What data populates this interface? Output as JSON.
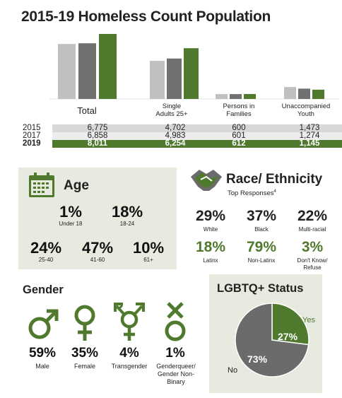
{
  "title": "2015-19 Homeless Count Population",
  "chart_data": {
    "type": "bar",
    "categories": [
      "Total",
      "Single Adults 25+",
      "Persons in Families",
      "Unaccompanied Youth"
    ],
    "series": [
      {
        "name": "2015",
        "values": [
          6775,
          4702,
          600,
          1473
        ],
        "color": "#c0c0c0"
      },
      {
        "name": "2017",
        "values": [
          6858,
          4983,
          601,
          1274
        ],
        "color": "#707070"
      },
      {
        "name": "2019",
        "values": [
          8011,
          6254,
          612,
          1145
        ],
        "color": "#4f7a2e"
      }
    ],
    "xlabel": "",
    "ylabel": "",
    "ylim": [
      0,
      8011
    ]
  },
  "categories": {
    "total": "Total",
    "single_l1": "Single",
    "single_l2": "Adults 25+",
    "families_l1": "Persons in",
    "families_l2": "Families",
    "youth_l1": "Unaccompanied",
    "youth_l2": "Youth"
  },
  "table": {
    "rows": [
      {
        "year": "2015",
        "cells": [
          "6,775",
          "4,702",
          "600",
          "1,473"
        ]
      },
      {
        "year": "2017",
        "cells": [
          "6,858",
          "4,983",
          "601",
          "1,274"
        ]
      },
      {
        "year": "2019",
        "cells": [
          "8,011",
          "6,254",
          "612",
          "1,145"
        ]
      }
    ]
  },
  "age": {
    "title": "Age",
    "groups": [
      {
        "pct": "1%",
        "label": "Under 18"
      },
      {
        "pct": "18%",
        "label": "18-24"
      },
      {
        "pct": "24%",
        "label": "25-40"
      },
      {
        "pct": "47%",
        "label": "41-60"
      },
      {
        "pct": "10%",
        "label": "61+"
      }
    ]
  },
  "race": {
    "title": "Race/ Ethnicity",
    "subtitle": "Top Responses",
    "subtitle_mark": "4",
    "groups": [
      {
        "pct": "29%",
        "label": "White"
      },
      {
        "pct": "37%",
        "label": "Black"
      },
      {
        "pct": "22%",
        "label": "Multi-racial"
      },
      {
        "pct": "18%",
        "label": "Latinx"
      },
      {
        "pct": "79%",
        "label": "Non-Latinx"
      },
      {
        "pct": "3%",
        "label_l1": "Don't Know/",
        "label_l2": "Refuse"
      }
    ]
  },
  "gender": {
    "title": "Gender",
    "groups": [
      {
        "pct": "59%",
        "label": "Male",
        "icon": "male-icon"
      },
      {
        "pct": "35%",
        "label": "Female",
        "icon": "female-icon"
      },
      {
        "pct": "4%",
        "label": "Transgender",
        "icon": "transgender-icon"
      },
      {
        "pct": "1%",
        "label_l1": "Genderqueer/",
        "label_l2": "Gender Non-",
        "label_l3": "Binary",
        "icon": "genderqueer-icon"
      }
    ]
  },
  "lgbtq": {
    "title": "LGBTQ+ Status",
    "chart_data": {
      "type": "pie",
      "categories": [
        "Yes",
        "No"
      ],
      "values": [
        27,
        73
      ],
      "colors": [
        "#4f7a2e",
        "#6b6b6b"
      ]
    },
    "yes_label": "Yes",
    "no_label": "No",
    "yes_pct": "27%",
    "no_pct": "73%"
  },
  "colors": {
    "accent": "#4f7a2e",
    "light_gray": "#c0c0c0",
    "dark_gray": "#707070",
    "panel": "#e6eadf"
  }
}
